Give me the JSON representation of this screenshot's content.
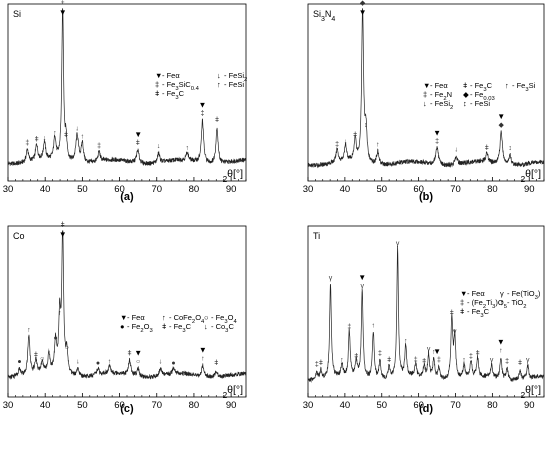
{
  "chart_data": [
    {
      "type": "line",
      "panel_caption": "(a)",
      "sample_label": "Si",
      "xlabel": "2θ[°]",
      "xlim": [
        30,
        94
      ],
      "x_ticks": [
        30,
        40,
        50,
        60,
        70,
        80,
        90
      ],
      "legend": [
        {
          "symbol": "▼",
          "name": "Feα"
        },
        {
          "symbol": "‡",
          "name": "Fe3SiC0.4"
        },
        {
          "symbol": "ǂ",
          "name": "Fe3C"
        },
        {
          "symbol": "↓",
          "name": "FeSi2"
        },
        {
          "symbol": "↑",
          "name": "FeSi"
        }
      ],
      "baseline": 0.08,
      "peaks": [
        {
          "x": 35.2,
          "h": 0.08,
          "w": 0.35
        },
        {
          "x": 37.7,
          "h": 0.1,
          "w": 0.35
        },
        {
          "x": 39.8,
          "h": 0.11,
          "w": 0.35
        },
        {
          "x": 42.6,
          "h": 0.14,
          "w": 0.35
        },
        {
          "x": 44.7,
          "h": 0.95,
          "w": 0.28
        },
        {
          "x": 45.6,
          "h": 0.13,
          "w": 0.3
        },
        {
          "x": 48.6,
          "h": 0.17,
          "w": 0.45
        },
        {
          "x": 50.0,
          "h": 0.12,
          "w": 0.35
        },
        {
          "x": 54.5,
          "h": 0.06,
          "w": 0.35
        },
        {
          "x": 64.9,
          "h": 0.08,
          "w": 0.4
        },
        {
          "x": 70.5,
          "h": 0.06,
          "w": 0.35
        },
        {
          "x": 78.2,
          "h": 0.05,
          "w": 0.35
        },
        {
          "x": 82.3,
          "h": 0.26,
          "w": 0.35
        },
        {
          "x": 86.2,
          "h": 0.22,
          "w": 0.35
        }
      ],
      "peak_markers": [
        {
          "x": 44.7,
          "symbol": "▼"
        },
        {
          "x": 65.0,
          "symbol": "▼"
        },
        {
          "x": 82.3,
          "symbol": "▼"
        }
      ]
    },
    {
      "type": "line",
      "panel_caption": "(b)",
      "sample_label": "Si3N4",
      "xlabel": "2θ[°]",
      "xlim": [
        30,
        94
      ],
      "x_ticks": [
        30,
        40,
        50,
        60,
        70,
        80,
        90
      ],
      "legend": [
        {
          "symbol": "▼",
          "name": "Feα"
        },
        {
          "symbol": "‡",
          "name": "Fe2N"
        },
        {
          "symbol": "↓",
          "name": "FeSi2"
        },
        {
          "symbol": "ǂ",
          "name": "Fe3C"
        },
        {
          "symbol": "◆",
          "name": "Fe0.03"
        },
        {
          "symbol": "↕",
          "name": "FeSi"
        },
        {
          "symbol": "↑",
          "name": "Fe3Si"
        }
      ],
      "baseline": 0.07,
      "peaks": [
        {
          "x": 37.9,
          "h": 0.08,
          "w": 0.35
        },
        {
          "x": 40.2,
          "h": 0.1,
          "w": 0.35
        },
        {
          "x": 42.8,
          "h": 0.14,
          "w": 0.35
        },
        {
          "x": 44.8,
          "h": 0.95,
          "w": 0.3
        },
        {
          "x": 45.7,
          "h": 0.2,
          "w": 0.35
        },
        {
          "x": 48.9,
          "h": 0.08,
          "w": 0.4
        },
        {
          "x": 65.0,
          "h": 0.1,
          "w": 0.45
        },
        {
          "x": 70.2,
          "h": 0.05,
          "w": 0.35
        },
        {
          "x": 78.5,
          "h": 0.06,
          "w": 0.35
        },
        {
          "x": 82.4,
          "h": 0.2,
          "w": 0.4
        },
        {
          "x": 84.8,
          "h": 0.06,
          "w": 0.35
        }
      ],
      "peak_markers": [
        {
          "x": 44.8,
          "symbol": "▼"
        },
        {
          "x": 65.0,
          "symbol": "▼"
        },
        {
          "x": 82.4,
          "symbol": "▼"
        }
      ]
    },
    {
      "type": "line",
      "panel_caption": "(c)",
      "sample_label": "Co",
      "xlabel": "2θ[°]",
      "xlim": [
        30,
        94
      ],
      "x_ticks": [
        30,
        40,
        50,
        60,
        70,
        80,
        90
      ],
      "legend": [
        {
          "symbol": "▼",
          "name": "Feα"
        },
        {
          "symbol": "●",
          "name": "Fe2O3"
        },
        {
          "symbol": "↑",
          "name": "CoFe2O4"
        },
        {
          "symbol": "ǂ",
          "name": "Fe3C"
        },
        {
          "symbol": "○",
          "name": "Fe3O4"
        },
        {
          "symbol": "↓",
          "name": "Co3C"
        }
      ],
      "baseline": 0.1,
      "peaks": [
        {
          "x": 33.1,
          "h": 0.05,
          "w": 0.35
        },
        {
          "x": 35.6,
          "h": 0.25,
          "w": 0.35
        },
        {
          "x": 37.5,
          "h": 0.09,
          "w": 0.35
        },
        {
          "x": 39.2,
          "h": 0.07,
          "w": 0.35
        },
        {
          "x": 41.0,
          "h": 0.12,
          "w": 0.35
        },
        {
          "x": 42.8,
          "h": 0.2,
          "w": 0.35
        },
        {
          "x": 43.9,
          "h": 0.36,
          "w": 0.3
        },
        {
          "x": 44.7,
          "h": 0.92,
          "w": 0.28
        },
        {
          "x": 45.8,
          "h": 0.14,
          "w": 0.35
        },
        {
          "x": 48.8,
          "h": 0.05,
          "w": 0.35
        },
        {
          "x": 54.2,
          "h": 0.04,
          "w": 0.35
        },
        {
          "x": 57.3,
          "h": 0.05,
          "w": 0.35
        },
        {
          "x": 62.7,
          "h": 0.1,
          "w": 0.35
        },
        {
          "x": 65.0,
          "h": 0.05,
          "w": 0.35
        },
        {
          "x": 71.0,
          "h": 0.05,
          "w": 0.35
        },
        {
          "x": 74.5,
          "h": 0.04,
          "w": 0.35
        },
        {
          "x": 82.4,
          "h": 0.07,
          "w": 0.35
        },
        {
          "x": 86.0,
          "h": 0.04,
          "w": 0.35
        }
      ],
      "peak_markers": [
        {
          "x": 44.7,
          "symbol": "▼"
        },
        {
          "x": 65.0,
          "symbol": "▼"
        },
        {
          "x": 82.4,
          "symbol": "▼"
        }
      ]
    },
    {
      "type": "line",
      "panel_caption": "(d)",
      "sample_label": "Ti",
      "xlabel": "2θ[°]",
      "xlim": [
        30,
        94
      ],
      "x_ticks": [
        30,
        40,
        50,
        60,
        70,
        80,
        90
      ],
      "legend": [
        {
          "symbol": "▼",
          "name": "Feα"
        },
        {
          "symbol": "‡",
          "name": "(Fe2Ti3)O5"
        },
        {
          "symbol": "ǂ",
          "name": "Fe3C"
        },
        {
          "symbol": "γ",
          "name": "Fe(TiO3)"
        },
        {
          "symbol": "↑",
          "name": "TiO2"
        }
      ],
      "baseline": 0.08,
      "peaks": [
        {
          "x": 32.4,
          "h": 0.05,
          "w": 0.3
        },
        {
          "x": 33.5,
          "h": 0.06,
          "w": 0.3
        },
        {
          "x": 36.1,
          "h": 0.6,
          "w": 0.28
        },
        {
          "x": 39.2,
          "h": 0.08,
          "w": 0.3
        },
        {
          "x": 41.2,
          "h": 0.29,
          "w": 0.28
        },
        {
          "x": 43.1,
          "h": 0.1,
          "w": 0.3
        },
        {
          "x": 44.7,
          "h": 0.55,
          "w": 0.28
        },
        {
          "x": 47.7,
          "h": 0.3,
          "w": 0.3
        },
        {
          "x": 49.5,
          "h": 0.12,
          "w": 0.3
        },
        {
          "x": 52.0,
          "h": 0.08,
          "w": 0.3
        },
        {
          "x": 54.3,
          "h": 0.82,
          "w": 0.26
        },
        {
          "x": 56.5,
          "h": 0.2,
          "w": 0.3
        },
        {
          "x": 59.2,
          "h": 0.08,
          "w": 0.3
        },
        {
          "x": 61.5,
          "h": 0.07,
          "w": 0.3
        },
        {
          "x": 62.7,
          "h": 0.15,
          "w": 0.3
        },
        {
          "x": 64.1,
          "h": 0.13,
          "w": 0.3
        },
        {
          "x": 65.5,
          "h": 0.08,
          "w": 0.3
        },
        {
          "x": 69.0,
          "h": 0.38,
          "w": 0.3
        },
        {
          "x": 69.8,
          "h": 0.26,
          "w": 0.3
        },
        {
          "x": 72.3,
          "h": 0.08,
          "w": 0.3
        },
        {
          "x": 74.2,
          "h": 0.1,
          "w": 0.3
        },
        {
          "x": 76.0,
          "h": 0.12,
          "w": 0.3
        },
        {
          "x": 79.8,
          "h": 0.08,
          "w": 0.3
        },
        {
          "x": 82.3,
          "h": 0.14,
          "w": 0.3
        },
        {
          "x": 84.0,
          "h": 0.07,
          "w": 0.3
        },
        {
          "x": 87.5,
          "h": 0.06,
          "w": 0.3
        },
        {
          "x": 89.6,
          "h": 0.08,
          "w": 0.3
        }
      ],
      "peak_markers": [
        {
          "x": 44.7,
          "symbol": "▼"
        },
        {
          "x": 65.0,
          "symbol": "▼"
        },
        {
          "x": 82.3,
          "symbol": "▼"
        }
      ]
    }
  ]
}
